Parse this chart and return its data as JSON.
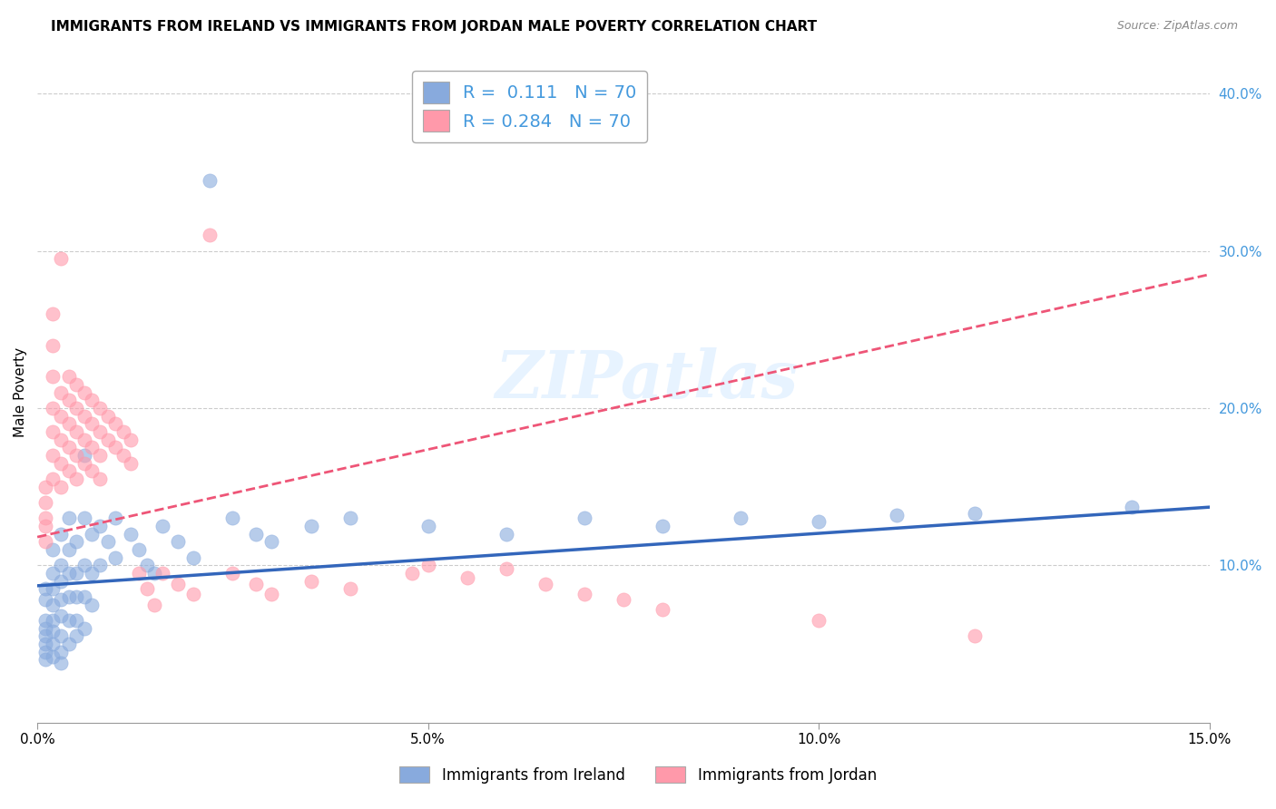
{
  "title": "IMMIGRANTS FROM IRELAND VS IMMIGRANTS FROM JORDAN MALE POVERTY CORRELATION CHART",
  "source": "Source: ZipAtlas.com",
  "ylabel": "Male Poverty",
  "x_min": 0.0,
  "x_max": 0.15,
  "y_min": 0.0,
  "y_max": 0.42,
  "x_ticks": [
    0.0,
    0.05,
    0.1,
    0.15
  ],
  "x_tick_labels": [
    "0.0%",
    "5.0%",
    "10.0%",
    "15.0%"
  ],
  "y_ticks_right": [
    0.1,
    0.2,
    0.3,
    0.4
  ],
  "y_tick_labels_right": [
    "10.0%",
    "20.0%",
    "30.0%",
    "40.0%"
  ],
  "ireland_color": "#88aadd",
  "jordan_color": "#ff99aa",
  "ireland_line_color": "#3366bb",
  "jordan_line_color": "#ee5577",
  "legend_R_ireland": "0.111",
  "legend_N_ireland": "70",
  "legend_R_jordan": "0.284",
  "legend_N_jordan": "70",
  "background_color": "#ffffff",
  "grid_color": "#cccccc",
  "watermark_text": "ZIPatlas",
  "ireland_scatter": [
    [
      0.001,
      0.085
    ],
    [
      0.001,
      0.078
    ],
    [
      0.001,
      0.065
    ],
    [
      0.001,
      0.06
    ],
    [
      0.001,
      0.055
    ],
    [
      0.001,
      0.05
    ],
    [
      0.001,
      0.045
    ],
    [
      0.001,
      0.04
    ],
    [
      0.002,
      0.11
    ],
    [
      0.002,
      0.095
    ],
    [
      0.002,
      0.085
    ],
    [
      0.002,
      0.075
    ],
    [
      0.002,
      0.065
    ],
    [
      0.002,
      0.058
    ],
    [
      0.002,
      0.05
    ],
    [
      0.002,
      0.042
    ],
    [
      0.003,
      0.12
    ],
    [
      0.003,
      0.1
    ],
    [
      0.003,
      0.09
    ],
    [
      0.003,
      0.078
    ],
    [
      0.003,
      0.068
    ],
    [
      0.003,
      0.055
    ],
    [
      0.003,
      0.045
    ],
    [
      0.003,
      0.038
    ],
    [
      0.004,
      0.13
    ],
    [
      0.004,
      0.11
    ],
    [
      0.004,
      0.095
    ],
    [
      0.004,
      0.08
    ],
    [
      0.004,
      0.065
    ],
    [
      0.004,
      0.05
    ],
    [
      0.005,
      0.115
    ],
    [
      0.005,
      0.095
    ],
    [
      0.005,
      0.08
    ],
    [
      0.005,
      0.065
    ],
    [
      0.005,
      0.055
    ],
    [
      0.006,
      0.17
    ],
    [
      0.006,
      0.13
    ],
    [
      0.006,
      0.1
    ],
    [
      0.006,
      0.08
    ],
    [
      0.006,
      0.06
    ],
    [
      0.007,
      0.12
    ],
    [
      0.007,
      0.095
    ],
    [
      0.007,
      0.075
    ],
    [
      0.008,
      0.125
    ],
    [
      0.008,
      0.1
    ],
    [
      0.009,
      0.115
    ],
    [
      0.01,
      0.13
    ],
    [
      0.01,
      0.105
    ],
    [
      0.012,
      0.12
    ],
    [
      0.013,
      0.11
    ],
    [
      0.014,
      0.1
    ],
    [
      0.015,
      0.095
    ],
    [
      0.016,
      0.125
    ],
    [
      0.018,
      0.115
    ],
    [
      0.02,
      0.105
    ],
    [
      0.022,
      0.345
    ],
    [
      0.025,
      0.13
    ],
    [
      0.028,
      0.12
    ],
    [
      0.03,
      0.115
    ],
    [
      0.035,
      0.125
    ],
    [
      0.04,
      0.13
    ],
    [
      0.05,
      0.125
    ],
    [
      0.06,
      0.12
    ],
    [
      0.07,
      0.13
    ],
    [
      0.08,
      0.125
    ],
    [
      0.09,
      0.13
    ],
    [
      0.1,
      0.128
    ],
    [
      0.11,
      0.132
    ],
    [
      0.12,
      0.133
    ],
    [
      0.14,
      0.137
    ]
  ],
  "jordan_scatter": [
    [
      0.001,
      0.15
    ],
    [
      0.001,
      0.14
    ],
    [
      0.001,
      0.13
    ],
    [
      0.001,
      0.125
    ],
    [
      0.001,
      0.115
    ],
    [
      0.002,
      0.26
    ],
    [
      0.002,
      0.24
    ],
    [
      0.002,
      0.22
    ],
    [
      0.002,
      0.2
    ],
    [
      0.002,
      0.185
    ],
    [
      0.002,
      0.17
    ],
    [
      0.002,
      0.155
    ],
    [
      0.003,
      0.295
    ],
    [
      0.003,
      0.21
    ],
    [
      0.003,
      0.195
    ],
    [
      0.003,
      0.18
    ],
    [
      0.003,
      0.165
    ],
    [
      0.003,
      0.15
    ],
    [
      0.004,
      0.22
    ],
    [
      0.004,
      0.205
    ],
    [
      0.004,
      0.19
    ],
    [
      0.004,
      0.175
    ],
    [
      0.004,
      0.16
    ],
    [
      0.005,
      0.215
    ],
    [
      0.005,
      0.2
    ],
    [
      0.005,
      0.185
    ],
    [
      0.005,
      0.17
    ],
    [
      0.005,
      0.155
    ],
    [
      0.006,
      0.21
    ],
    [
      0.006,
      0.195
    ],
    [
      0.006,
      0.18
    ],
    [
      0.006,
      0.165
    ],
    [
      0.007,
      0.205
    ],
    [
      0.007,
      0.19
    ],
    [
      0.007,
      0.175
    ],
    [
      0.007,
      0.16
    ],
    [
      0.008,
      0.2
    ],
    [
      0.008,
      0.185
    ],
    [
      0.008,
      0.17
    ],
    [
      0.008,
      0.155
    ],
    [
      0.009,
      0.195
    ],
    [
      0.009,
      0.18
    ],
    [
      0.01,
      0.19
    ],
    [
      0.01,
      0.175
    ],
    [
      0.011,
      0.185
    ],
    [
      0.011,
      0.17
    ],
    [
      0.012,
      0.18
    ],
    [
      0.012,
      0.165
    ],
    [
      0.013,
      0.095
    ],
    [
      0.014,
      0.085
    ],
    [
      0.015,
      0.075
    ],
    [
      0.016,
      0.095
    ],
    [
      0.018,
      0.088
    ],
    [
      0.02,
      0.082
    ],
    [
      0.022,
      0.31
    ],
    [
      0.025,
      0.095
    ],
    [
      0.028,
      0.088
    ],
    [
      0.03,
      0.082
    ],
    [
      0.035,
      0.09
    ],
    [
      0.04,
      0.085
    ],
    [
      0.048,
      0.095
    ],
    [
      0.05,
      0.1
    ],
    [
      0.055,
      0.092
    ],
    [
      0.06,
      0.098
    ],
    [
      0.065,
      0.088
    ],
    [
      0.07,
      0.082
    ],
    [
      0.075,
      0.078
    ],
    [
      0.08,
      0.072
    ],
    [
      0.1,
      0.065
    ],
    [
      0.12,
      0.055
    ]
  ],
  "ireland_trendline": [
    0.0,
    0.15,
    0.087,
    0.137
  ],
  "jordan_trendline": [
    0.0,
    0.15,
    0.118,
    0.285
  ]
}
